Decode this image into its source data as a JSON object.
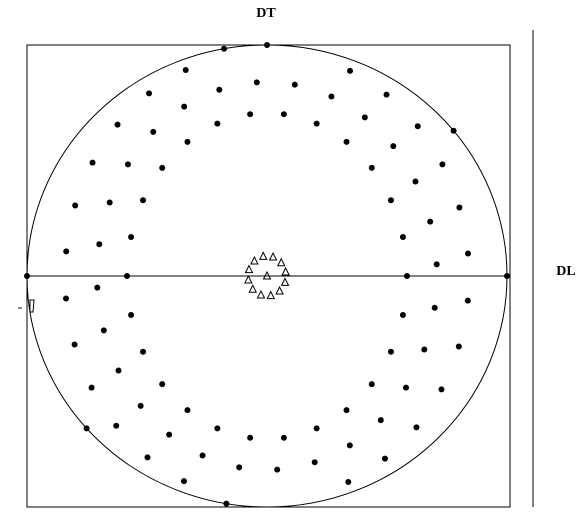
{
  "labels": {
    "top": "DT",
    "right": "DL",
    "left_mark": "-"
  }
}
